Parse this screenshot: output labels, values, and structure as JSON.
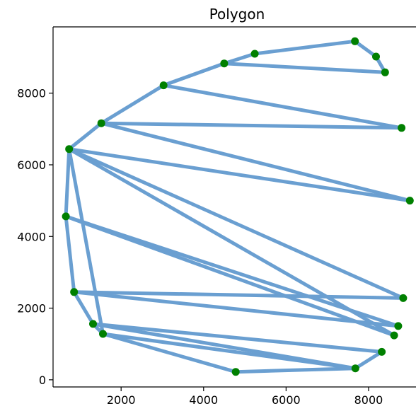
{
  "chart_data": {
    "type": "line",
    "title": "Polygon",
    "xlabel": "",
    "ylabel": "",
    "xlim": [
      350,
      9150
    ],
    "ylim": [
      -200,
      9850
    ],
    "xticks": [
      2000,
      4000,
      6000,
      8000
    ],
    "yticks": [
      0,
      2000,
      4000,
      6000,
      8000
    ],
    "xtick_labels": [
      "2000",
      "4000",
      "6000",
      "8000"
    ],
    "ytick_labels": [
      "0",
      "2000",
      "4000",
      "6000",
      "8000"
    ],
    "grid": false,
    "series": [
      {
        "x": [
          7670,
          8180,
          8400,
          8800,
          9000,
          8840,
          8720,
          8620,
          8320,
          7680,
          4780,
          1560,
          1320,
          860,
          660,
          740,
          1520,
          3030,
          4500,
          5240
        ],
        "y": [
          9450,
          9020,
          8580,
          7030,
          5000,
          2280,
          1500,
          1240,
          780,
          320,
          220,
          1280,
          1560,
          2450,
          4560,
          6440,
          7160,
          8220,
          8830,
          9100
        ]
      }
    ],
    "path_order": [
      0,
      1,
      2,
      18,
      17,
      3,
      16,
      4,
      15,
      5,
      13,
      6,
      14,
      7,
      15,
      11,
      9,
      10,
      11,
      12,
      9,
      8,
      12,
      13,
      14,
      15,
      16,
      17,
      18,
      19,
      0
    ]
  },
  "colors": {
    "line": "#6a9fd1",
    "marker": "#008000",
    "axes": "#000000",
    "background": "#ffffff"
  }
}
